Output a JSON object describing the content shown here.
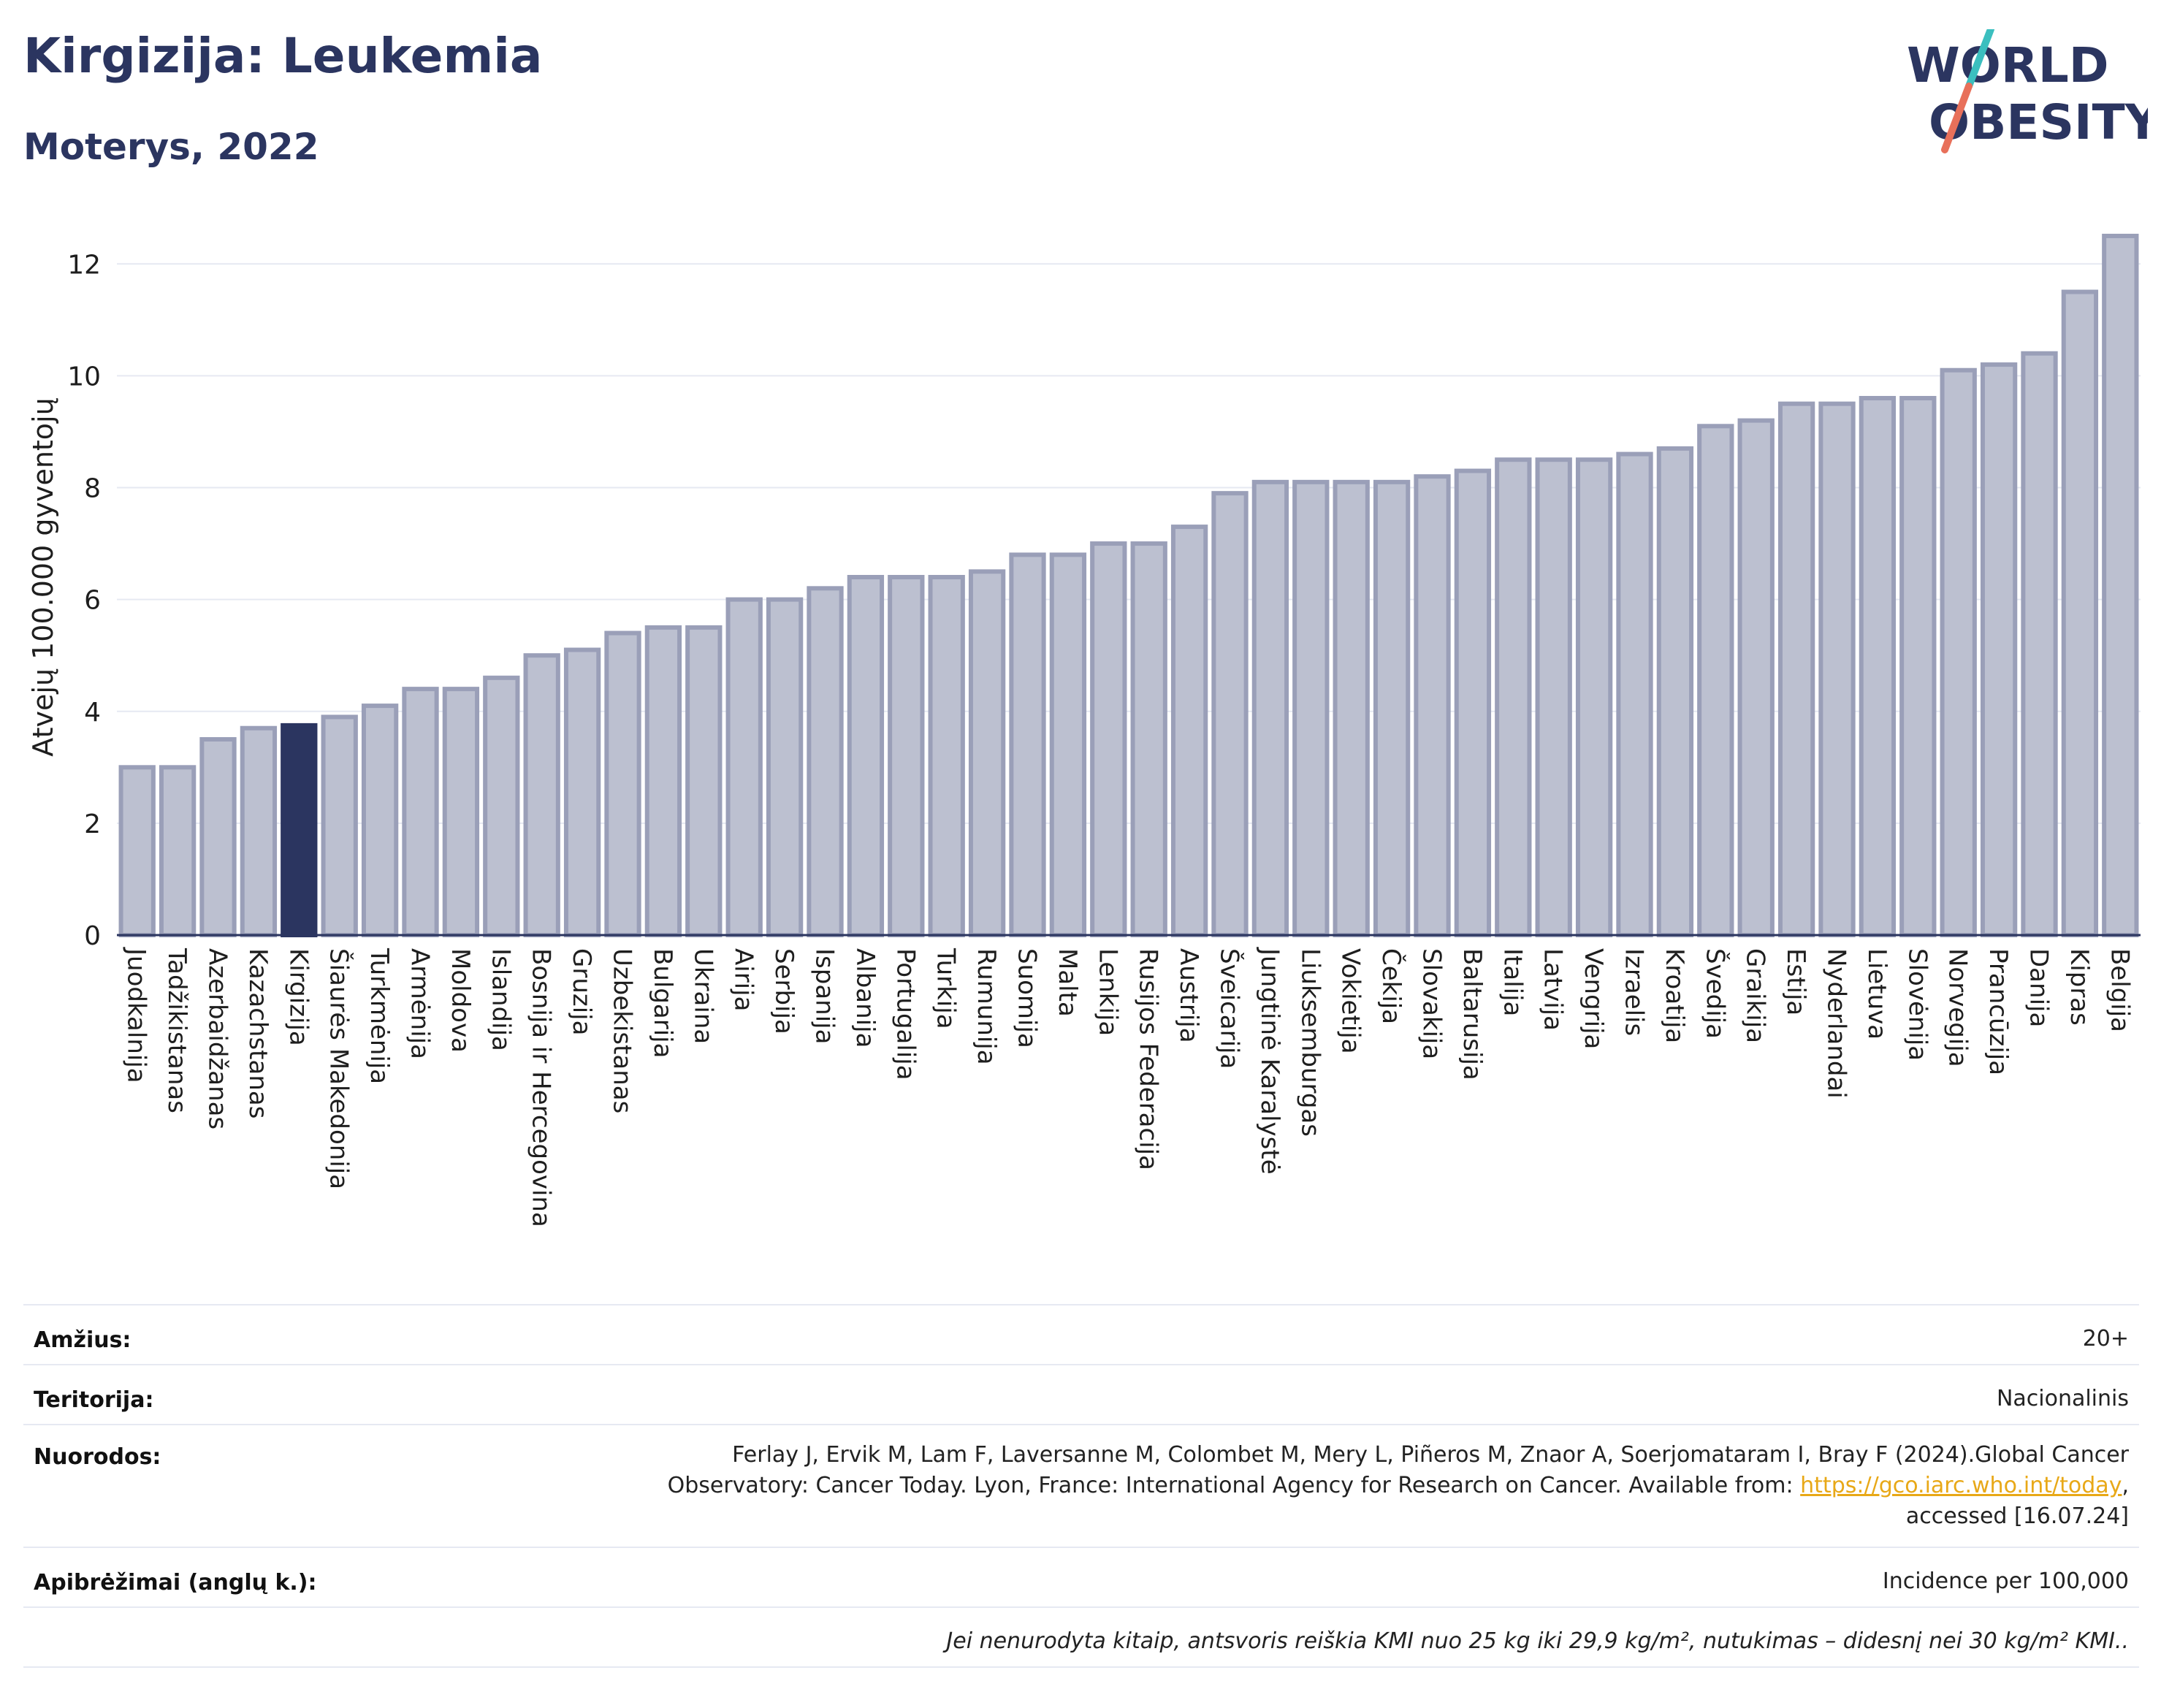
{
  "header": {
    "title": "Kirgizija: Leukemia",
    "subtitle": "Moterys, 2022",
    "logo_line1": "WORLD",
    "logo_line2": "OBESITY"
  },
  "colors": {
    "bar_default": "#bcc0d0",
    "bar_default_border": "#9a9fb8",
    "bar_highlight": "#2b3560",
    "title": "#2b3560",
    "link": "#e8a817",
    "logo_teal": "#3bbfbf",
    "logo_coral": "#e8705a"
  },
  "chart_data": {
    "type": "bar",
    "ylabel": "Atvejų 100.000 gyventojų",
    "ylim": [
      0,
      12.8
    ],
    "yticks": [
      0,
      2,
      4,
      6,
      8,
      10,
      12
    ],
    "grid": true,
    "highlight": "Kirgizija",
    "categories": [
      "Juodkalnija",
      "Tadžikistanas",
      "Azerbaidžanas",
      "Kazachstanas",
      "Kirgizija",
      "Šiaurės Makedonija",
      "Turkmėnija",
      "Armėnija",
      "Moldova",
      "Islandija",
      "Bosnija ir Hercegovina",
      "Gruzija",
      "Uzbekistanas",
      "Bulgarija",
      "Ukraina",
      "Airija",
      "Serbija",
      "Ispanija",
      "Albanija",
      "Portugalija",
      "Turkija",
      "Rumunija",
      "Suomija",
      "Malta",
      "Lenkija",
      "Rusijos Federacija",
      "Austrija",
      "Šveicarija",
      "Jungtinė Karalystė",
      "Liuksemburgas",
      "Vokietija",
      "Čekija",
      "Slovakija",
      "Baltarusija",
      "Italija",
      "Latvija",
      "Vengrija",
      "Izraelis",
      "Kroatija",
      "Švedija",
      "Graikija",
      "Estija",
      "Nyderlandai",
      "Lietuva",
      "Slovėnija",
      "Norvegija",
      "Prancūzija",
      "Danija",
      "Kipras",
      "Belgija"
    ],
    "values": [
      3.0,
      3.0,
      3.5,
      3.7,
      3.75,
      3.9,
      4.1,
      4.4,
      4.4,
      4.6,
      5.0,
      5.1,
      5.4,
      5.5,
      5.5,
      6.0,
      6.0,
      6.2,
      6.4,
      6.4,
      6.4,
      6.5,
      6.8,
      6.8,
      7.0,
      7.0,
      7.3,
      7.9,
      8.1,
      8.1,
      8.1,
      8.1,
      8.2,
      8.3,
      8.5,
      8.5,
      8.5,
      8.6,
      8.7,
      9.1,
      9.2,
      9.5,
      9.5,
      9.6,
      9.6,
      10.1,
      10.2,
      10.4,
      11.5,
      12.5
    ]
  },
  "meta": {
    "age_label": "Amžius:",
    "age_value": "20+",
    "territory_label": "Teritorija:",
    "territory_value": "Nacionalinis",
    "refs_label": "Nuorodos:",
    "refs_line1": "Ferlay J, Ervik M, Lam F, Laversanne M, Colombet M, Mery L, Piñeros M, Znaor A, Soerjomataram I, Bray F (2024).Global Cancer",
    "refs_line2": "Observatory: Cancer Today. Lyon, France: International Agency for Research on Cancer. Available from: ",
    "refs_link": "https://gco.iarc.who.int/today",
    "refs_line2_end": ",",
    "refs_line3": "accessed [16.07.24]",
    "definitions_label": "Apibrėžimai (anglų k.):",
    "definitions_value": "Incidence per 100,000",
    "note": "Jei nenurodyta kitaip, antsvoris reiškia KMI nuo 25 kg iki 29,9 kg/m², nutukimas – didesnį nei 30 kg/m² KMI.."
  }
}
